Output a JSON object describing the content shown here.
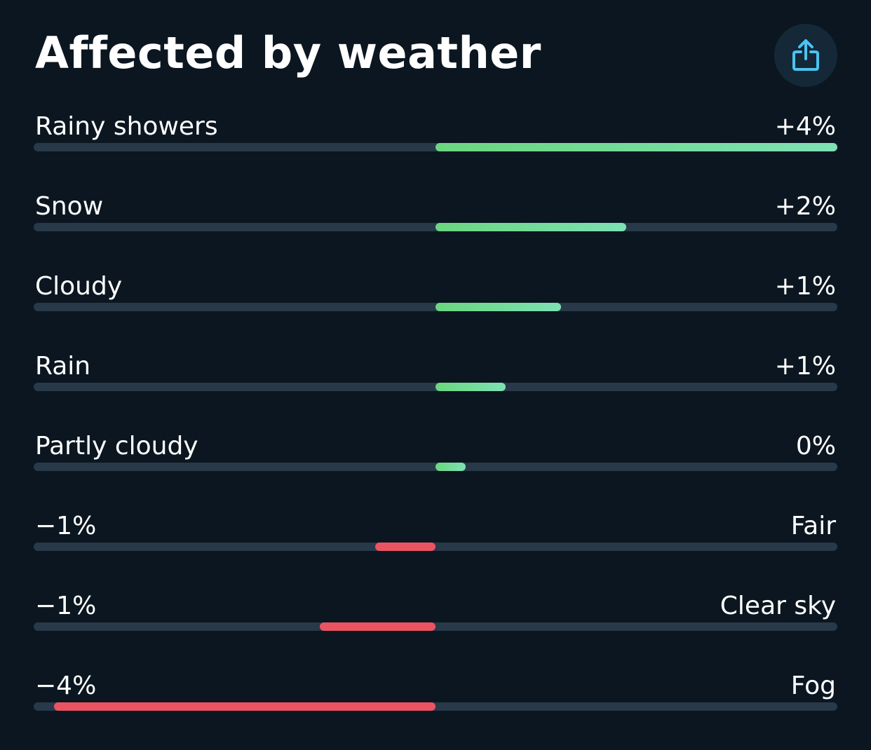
{
  "header": {
    "title": "Affected by weather",
    "share_icon": "share-icon"
  },
  "scale": {
    "max_abs": 4
  },
  "colors": {
    "background": "#0b1620",
    "track": "#28394a",
    "positive": "#6bd67f",
    "negative": "#ea5462",
    "share_icon": "#4cc3f0"
  },
  "rows": [
    {
      "name": "Rainy showers",
      "value_text": "+4%",
      "value": 4.0
    },
    {
      "name": "Snow",
      "value_text": "+2%",
      "value": 1.9
    },
    {
      "name": "Cloudy",
      "value_text": "+1%",
      "value": 1.25
    },
    {
      "name": "Rain",
      "value_text": "+1%",
      "value": 0.7
    },
    {
      "name": "Partly cloudy",
      "value_text": "0%",
      "value": 0.3
    },
    {
      "name": "Fair",
      "value_text": "−1%",
      "value": -0.6
    },
    {
      "name": "Clear sky",
      "value_text": "−1%",
      "value": -1.15
    },
    {
      "name": "Fog",
      "value_text": "−4%",
      "value": -3.8
    }
  ]
}
